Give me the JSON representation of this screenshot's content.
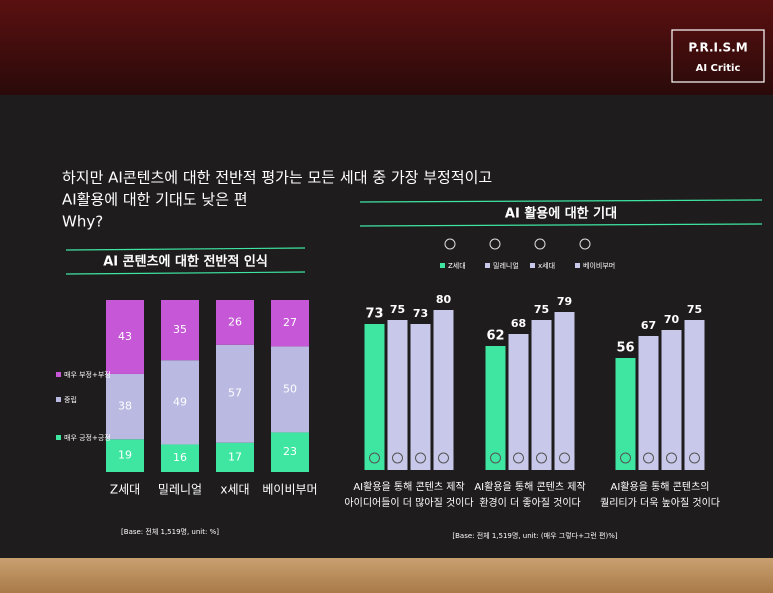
{
  "slide": {
    "logo": {
      "title": "P.R.I.S.M",
      "subtitle": "AI Critic"
    },
    "headline": [
      "하지만 AI콘텐츠에 대한 전반적 평가는 모든 세대 중 가장 부정적이고",
      "AI활용에 대한 기대도 낮은 편",
      "Why?"
    ]
  },
  "chart_data": [
    {
      "type": "stacked_bar",
      "title": "AI 콘텐츠에 대한 전반적 인식",
      "categories": [
        "Z세대",
        "밀레니얼",
        "x세대",
        "베이비부머"
      ],
      "series": [
        {
          "name": "매우 긍정+긍정",
          "color": "#3ee6a2",
          "values": [
            19,
            16,
            17,
            23
          ]
        },
        {
          "name": "중립",
          "color": "#b9b9e2",
          "values": [
            38,
            49,
            57,
            50
          ]
        },
        {
          "name": "매우 부정+부정",
          "color": "#c657d6",
          "values": [
            43,
            35,
            26,
            27
          ]
        }
      ],
      "note": "[Base: 전체 1,519명, unit: %]"
    },
    {
      "type": "grouped_bar",
      "title": "AI 활용에 대한 기대",
      "categories": [
        [
          "AI활용을 통해 콘텐츠 제작",
          "아이디어들이 더 많아질 것이다"
        ],
        [
          "AI활용을 통해 콘텐츠 제작",
          "환경이 더 좋아질 것이다"
        ],
        [
          "AI활용을 통해 콘텐츠의",
          "퀄리티가 더욱 높아질 것이다"
        ]
      ],
      "series": [
        {
          "name": "Z세대",
          "color": "#3ee6a2",
          "values": [
            73,
            62,
            56
          ]
        },
        {
          "name": "밀레니얼",
          "color": "#c8c8ea",
          "values": [
            75,
            68,
            67
          ]
        },
        {
          "name": "x세대",
          "color": "#c8c8ea",
          "values": [
            73,
            75,
            70
          ]
        },
        {
          "name": "베이비부머",
          "color": "#c8c8ea",
          "values": [
            80,
            79,
            75
          ]
        }
      ],
      "note": "[Base: 전체 1,519명, unit: (매우 그렇다+그런 편)%]"
    }
  ]
}
